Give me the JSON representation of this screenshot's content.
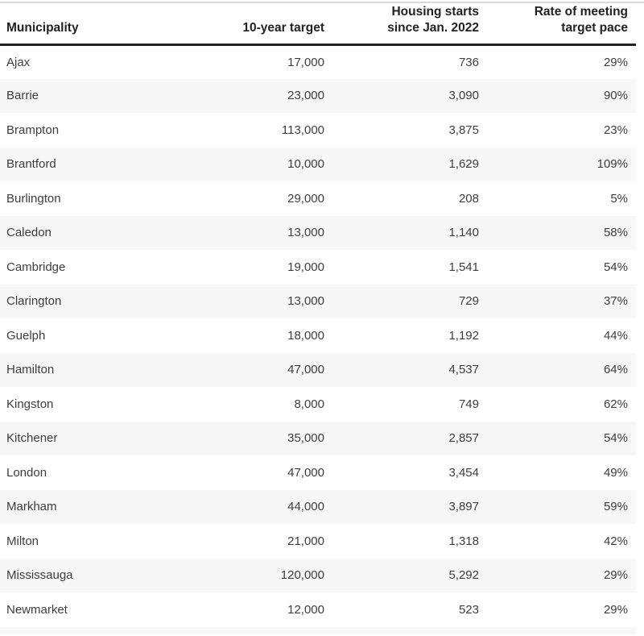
{
  "page": {
    "background": "#ffffff",
    "top_rule_color": "#d9d9d9",
    "header_rule_color": "#222222",
    "row_stripe_color": "#f7f7f7",
    "body_text_color": "#3d3d3d",
    "header_text_color": "#222222"
  },
  "table": {
    "columns": [
      {
        "id": "municipality",
        "label": "Municipality",
        "label_lines": [
          "Municipality"
        ],
        "align": "left"
      },
      {
        "id": "ten-year-target",
        "label": "10-year target",
        "label_lines": [
          "10-year target"
        ],
        "align": "right"
      },
      {
        "id": "housing-starts",
        "label": "Housing starts since Jan. 2022",
        "label_lines": [
          "Housing starts",
          "since Jan. 2022"
        ],
        "align": "right"
      },
      {
        "id": "rate",
        "label": "Rate of meeting target pace",
        "label_lines": [
          "Rate of meeting",
          "target pace"
        ],
        "align": "right"
      }
    ],
    "rows": [
      [
        "Ajax",
        "17,000",
        "736",
        "29%"
      ],
      [
        "Barrie",
        "23,000",
        "3,090",
        "90%"
      ],
      [
        "Brampton",
        "113,000",
        "3,875",
        "23%"
      ],
      [
        "Brantford",
        "10,000",
        "1,629",
        "109%"
      ],
      [
        "Burlington",
        "29,000",
        "208",
        "5%"
      ],
      [
        "Caledon",
        "13,000",
        "1,140",
        "58%"
      ],
      [
        "Cambridge",
        "19,000",
        "1,541",
        "54%"
      ],
      [
        "Clarington",
        "13,000",
        "729",
        "37%"
      ],
      [
        "Guelph",
        "18,000",
        "1,192",
        "44%"
      ],
      [
        "Hamilton",
        "47,000",
        "4,537",
        "64%"
      ],
      [
        "Kingston",
        "8,000",
        "749",
        "62%"
      ],
      [
        "Kitchener",
        "35,000",
        "2,857",
        "54%"
      ],
      [
        "London",
        "47,000",
        "3,454",
        "49%"
      ],
      [
        "Markham",
        "44,000",
        "3,897",
        "59%"
      ],
      [
        "Milton",
        "21,000",
        "1,318",
        "42%"
      ],
      [
        "Mississauga",
        "120,000",
        "5,292",
        "29%"
      ],
      [
        "Newmarket",
        "12,000",
        "523",
        "29%"
      ]
    ]
  },
  "chart_data": {
    "type": "table",
    "title": "",
    "columns": [
      "Municipality",
      "10-year target",
      "Housing starts since Jan. 2022",
      "Rate of meeting target pace"
    ],
    "rows": [
      [
        "Ajax",
        17000,
        736,
        "29%"
      ],
      [
        "Barrie",
        23000,
        3090,
        "90%"
      ],
      [
        "Brampton",
        113000,
        3875,
        "23%"
      ],
      [
        "Brantford",
        10000,
        1629,
        "109%"
      ],
      [
        "Burlington",
        29000,
        208,
        "5%"
      ],
      [
        "Caledon",
        13000,
        1140,
        "58%"
      ],
      [
        "Cambridge",
        19000,
        1541,
        "54%"
      ],
      [
        "Clarington",
        13000,
        729,
        "37%"
      ],
      [
        "Guelph",
        18000,
        1192,
        "44%"
      ],
      [
        "Hamilton",
        47000,
        4537,
        "64%"
      ],
      [
        "Kingston",
        8000,
        749,
        "62%"
      ],
      [
        "Kitchener",
        35000,
        2857,
        "54%"
      ],
      [
        "London",
        47000,
        3454,
        "49%"
      ],
      [
        "Markham",
        44000,
        3897,
        "59%"
      ],
      [
        "Milton",
        21000,
        1318,
        "42%"
      ],
      [
        "Mississauga",
        120000,
        5292,
        "29%"
      ],
      [
        "Newmarket",
        12000,
        523,
        "29%"
      ]
    ],
    "layout": {
      "striped_rows": true,
      "stripe_starts_on": "second_row",
      "numeric_columns_right_aligned": true,
      "partial_next_row_visible_at_bottom": true
    }
  }
}
